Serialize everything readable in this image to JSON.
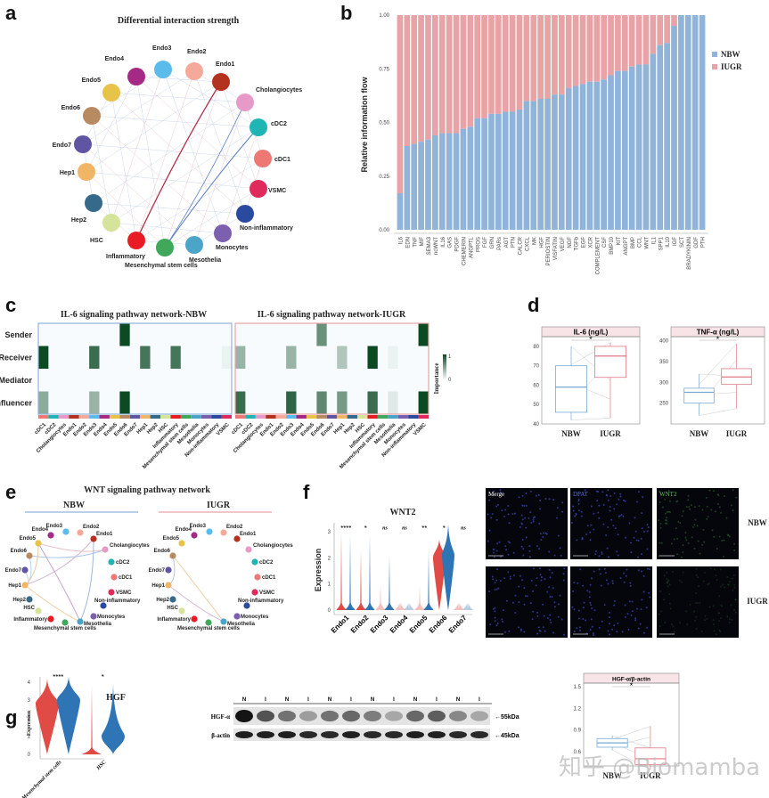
{
  "panel_labels": {
    "a": "a",
    "b": "b",
    "c": "c",
    "d": "d",
    "e": "e",
    "f": "f",
    "g": "g"
  },
  "colors": {
    "nbw": "#8fb3d9",
    "iugr": "#e8a3a6",
    "heat_high": "#0b4a23",
    "nbw_box": "#7aa9d0",
    "iugr_box": "#e07a85",
    "violin_red": "#e04b45",
    "violin_blue": "#2f74b5"
  },
  "cell_types": [
    {
      "name": "Endo3",
      "color": "#5bbcec"
    },
    {
      "name": "Endo2",
      "color": "#f4a99a"
    },
    {
      "name": "Endo1",
      "color": "#b3311f"
    },
    {
      "name": "Cholangiocytes",
      "color": "#e79ac8"
    },
    {
      "name": "cDC2",
      "color": "#20b5b5"
    },
    {
      "name": "cDC1",
      "color": "#ee7874"
    },
    {
      "name": "VSMC",
      "color": "#df2b5c"
    },
    {
      "name": "Non-inflammatory",
      "color": "#2a4aa0"
    },
    {
      "name": "Monocytes",
      "color": "#7d5fb0"
    },
    {
      "name": "Mesothelia",
      "color": "#4aa5c9"
    },
    {
      "name": "Mesenchymal stem cells",
      "color": "#3fa85a"
    },
    {
      "name": "Inflammatory",
      "color": "#e81c24"
    },
    {
      "name": "HSC",
      "color": "#d6e39a"
    },
    {
      "name": "Hep2",
      "color": "#356a8a"
    },
    {
      "name": "Hep1",
      "color": "#f1b665"
    },
    {
      "name": "Endo7",
      "color": "#5f55a2"
    },
    {
      "name": "Endo6",
      "color": "#b78a62"
    },
    {
      "name": "Endo5",
      "color": "#e7c34a"
    },
    {
      "name": "Endo4",
      "color": "#a52a86"
    }
  ],
  "panel_a": {
    "title": "Differential interaction strength"
  },
  "chart_data": [
    {
      "type": "bar",
      "stacked": true,
      "panel": "b",
      "ylabel": "Relative information flow",
      "ylim": [
        0,
        1
      ],
      "yticks": [
        "0.00",
        "0.25",
        "0.50",
        "0.75",
        "1.00"
      ],
      "legend_position": "right",
      "categories": [
        "IL6",
        "EDN",
        "TNF",
        "MIF",
        "SEMA3",
        "ncWNT",
        "IL16",
        "GAS",
        "PDGF",
        "CHEMERIN",
        "ANGPTL",
        "PROS",
        "FGF",
        "GRN",
        "PARs",
        "AGT",
        "PTN",
        "CALCR",
        "CXCL",
        "MK",
        "HGF",
        "PERIOSTIN",
        "VISFATIN",
        "VEGF",
        "NGF",
        "TGFb",
        "EGF",
        "XCR",
        "COMPLEMENT",
        "CSF",
        "BMP10",
        "KIT",
        "ANGPT",
        "BMP",
        "CCL",
        "WNT",
        "IL1",
        "SPP1",
        "IL10",
        "IGF",
        "SCT",
        "BRADYKININ",
        "GDF",
        "PTH"
      ],
      "series": [
        {
          "name": "NBW",
          "values": [
            0.17,
            0.39,
            0.4,
            0.41,
            0.42,
            0.44,
            0.45,
            0.45,
            0.45,
            0.47,
            0.48,
            0.52,
            0.52,
            0.54,
            0.54,
            0.55,
            0.55,
            0.56,
            0.6,
            0.6,
            0.61,
            0.61,
            0.63,
            0.63,
            0.66,
            0.67,
            0.68,
            0.69,
            0.69,
            0.7,
            0.72,
            0.74,
            0.74,
            0.76,
            0.77,
            0.77,
            0.82,
            0.86,
            0.87,
            0.95,
            1,
            1,
            1,
            1
          ]
        },
        {
          "name": "IUGR",
          "values": [
            0.83,
            0.61,
            0.6,
            0.59,
            0.58,
            0.56,
            0.55,
            0.55,
            0.55,
            0.53,
            0.52,
            0.48,
            0.48,
            0.46,
            0.46,
            0.45,
            0.45,
            0.44,
            0.4,
            0.4,
            0.39,
            0.39,
            0.37,
            0.37,
            0.34,
            0.33,
            0.32,
            0.31,
            0.31,
            0.3,
            0.28,
            0.26,
            0.26,
            0.24,
            0.23,
            0.23,
            0.18,
            0.14,
            0.13,
            0.05,
            0,
            0,
            0,
            0
          ]
        }
      ]
    },
    {
      "type": "heatmap",
      "panel": "c",
      "rows": [
        "Sender",
        "Receiver",
        "Mediator",
        "Influencer"
      ],
      "columns": [
        "cDC1",
        "cDC2",
        "Cholangiocytes",
        "Endo1",
        "Endo2",
        "Endo3",
        "Endo4",
        "Endo5",
        "Endo6",
        "Endo7",
        "Hep1",
        "Hep2",
        "HSC",
        "Inflammatory",
        "Mesenchymal stem cells",
        "Mesothelia",
        "Monocytes",
        "Non-inflammatory",
        "VSMC"
      ],
      "legend_title": "Importance",
      "legend_ticks": [
        "0",
        "1"
      ],
      "panels": [
        {
          "title": "IL-6 signaling pathway network-NBW",
          "values": [
            [
              0,
              0,
              0,
              0,
              0,
              0,
              0,
              0,
              1,
              0,
              0,
              0,
              0,
              0,
              0,
              0,
              0,
              0,
              0
            ],
            [
              1,
              0,
              0,
              0,
              0,
              0.8,
              0,
              0,
              0,
              0,
              0.75,
              0,
              0,
              0.75,
              0,
              0,
              0,
              0,
              0.05
            ],
            [
              0,
              0,
              0,
              0,
              0,
              0,
              0,
              0,
              0,
              0,
              0,
              0,
              0,
              0,
              0,
              0,
              0,
              0,
              0
            ],
            [
              0.45,
              0,
              0,
              0,
              0,
              0.4,
              0,
              0,
              1,
              0,
              0,
              0,
              0,
              0,
              0,
              0,
              0,
              0,
              0
            ]
          ]
        },
        {
          "title": "IL-6 signaling pathway network-IUGR",
          "values": [
            [
              0,
              0,
              0,
              0,
              0,
              0,
              0,
              0,
              0.6,
              0,
              0,
              0,
              0,
              0,
              0,
              0,
              0,
              0,
              1
            ],
            [
              0.4,
              0,
              0,
              0,
              0,
              0.4,
              0,
              0,
              0,
              0,
              0.3,
              0,
              0,
              1,
              0,
              0.05,
              0,
              0,
              0
            ],
            [
              0,
              0,
              0,
              0,
              0,
              0,
              0,
              0,
              0,
              0,
              0,
              0,
              0,
              0,
              0,
              0,
              0,
              0,
              0
            ],
            [
              0.8,
              0,
              0,
              0,
              0,
              0.85,
              0,
              0,
              0.65,
              0,
              0.55,
              0,
              0,
              0.8,
              0,
              0.1,
              0,
              0,
              1
            ]
          ]
        }
      ]
    },
    {
      "type": "box",
      "panel": "d",
      "groups": [
        "NBW",
        "IUGR"
      ],
      "plots": [
        {
          "title": "IL-6 (ng/L)",
          "ylim": [
            40,
            85
          ],
          "yticks": [
            40,
            50,
            60,
            70,
            80
          ],
          "significance": "*",
          "boxes": [
            {
              "min": 42,
              "q1": 46,
              "median": 59,
              "q3": 70,
              "max": 80
            },
            {
              "min": 43,
              "q1": 64,
              "median": 75,
              "q3": 80,
              "max": 82
            }
          ]
        },
        {
          "title": "TNF-α (ng/L)",
          "ylim": [
            200,
            410
          ],
          "yticks": [
            250,
            300,
            350,
            400
          ],
          "significance": "*",
          "boxes": [
            {
              "min": 220,
              "q1": 250,
              "median": 276,
              "q3": 286,
              "max": 320
            },
            {
              "min": 237,
              "q1": 295,
              "median": 313,
              "q3": 333,
              "max": 393
            }
          ]
        }
      ]
    },
    {
      "type": "violin",
      "panel": "f",
      "title": "WNT2",
      "ylabel": "Expression",
      "ylim": [
        0,
        3.3
      ],
      "yticks": [
        0,
        1,
        2,
        3
      ],
      "categories": [
        "Endo1",
        "Endo2",
        "Endo3",
        "Endo4",
        "Endo5",
        "Endo6",
        "Endo7"
      ],
      "significance": [
        "****",
        "*",
        "ns",
        "ns",
        "**",
        "*",
        "ns"
      ],
      "series": [
        {
          "max": [
            3.0,
            2.3,
            1.0,
            0.05,
            1.0,
            2.7,
            0.05
          ],
          "center": [
            0,
            0,
            0,
            0,
            0,
            2.0,
            0
          ]
        },
        {
          "max": [
            2.9,
            2.9,
            2.1,
            0.05,
            2.3,
            3.3,
            0.05
          ],
          "center": [
            0.1,
            0.05,
            0,
            0,
            0.1,
            2.1,
            0
          ]
        }
      ]
    },
    {
      "type": "violin",
      "panel": "g",
      "title": "HGF",
      "ylabel": "Expression",
      "ylim": [
        0,
        4.5
      ],
      "yticks": [
        0,
        1,
        2,
        3,
        4
      ],
      "categories": [
        "Mesenchymal stem cells",
        "HSC"
      ],
      "significance": [
        "****",
        "*"
      ],
      "series": [
        {
          "max": [
            4.2,
            3.8
          ],
          "center": [
            2.8,
            0.3
          ]
        },
        {
          "max": [
            4.3,
            3.9
          ],
          "center": [
            3.0,
            1.0
          ]
        }
      ]
    },
    {
      "type": "box",
      "panel": "g",
      "title": "HGF-α/β-actin",
      "ylim": [
        0.4,
        1.55
      ],
      "yticks": [
        0.6,
        0.9,
        1.2,
        1.5
      ],
      "significance": "*",
      "groups": [
        "NBW",
        "IUGR"
      ],
      "boxes": [
        {
          "min": 0.62,
          "q1": 0.66,
          "median": 0.72,
          "q3": 0.78,
          "max": 0.82
        },
        {
          "min": 0.35,
          "q1": 0.42,
          "median": 0.5,
          "q3": 0.65,
          "max": 0.95
        }
      ]
    }
  ],
  "panel_e": {
    "title": "WNT signaling pathway network",
    "groups": [
      "NBW",
      "IUGR"
    ]
  },
  "panel_f_images": {
    "channels": [
      "Merge",
      "DPAT",
      "WNT2"
    ],
    "rows": [
      "NBW",
      "IUGR"
    ]
  },
  "panel_g_blot": {
    "lanes": [
      "N",
      "I",
      "N",
      "I",
      "N",
      "I",
      "N",
      "I",
      "N",
      "I",
      "N",
      "I"
    ],
    "rows": [
      {
        "label": "HGF-α",
        "marker": "←55kDa",
        "intensity": [
          1,
          0.7,
          0.55,
          0.35,
          0.55,
          0.6,
          0.5,
          0.3,
          0.6,
          0.65,
          0.45,
          0.3
        ]
      },
      {
        "label": "β-actin",
        "marker": "←45kDa",
        "intensity": [
          0.95,
          0.95,
          0.95,
          0.9,
          0.9,
          0.95,
          0.9,
          0.9,
          0.95,
          0.95,
          0.9,
          0.9
        ]
      }
    ]
  },
  "watermark": "知乎 @Biomamba"
}
